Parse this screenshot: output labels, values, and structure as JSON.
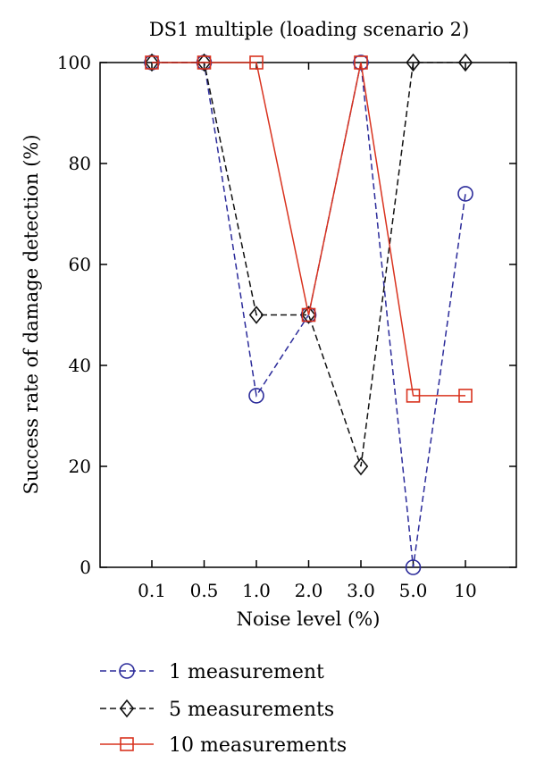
{
  "chart_data": {
    "type": "line",
    "title": "DS1 multiple (loading scenario 2)",
    "xlabel": "Noise level (%)",
    "ylabel": "Success rate of damage detection (%)",
    "categories": [
      "0.1",
      "0.5",
      "1.0",
      "2.0",
      "3.0",
      "5.0",
      "10"
    ],
    "ylim": [
      0,
      100
    ],
    "yticks": [
      "0",
      "20",
      "40",
      "60",
      "80",
      "100"
    ],
    "grid": false,
    "legend_position": "bottom",
    "series": [
      {
        "name": "1 measurement",
        "values": [
          100,
          100,
          34,
          50,
          100,
          0,
          74
        ],
        "color": "#2b2b9a",
        "marker": "circle",
        "dash": "dashed"
      },
      {
        "name": "5 measurements",
        "values": [
          100,
          100,
          50,
          50,
          20,
          100,
          100
        ],
        "color": "#111111",
        "marker": "diamond",
        "dash": "dashed"
      },
      {
        "name": "10 measurements",
        "values": [
          100,
          100,
          100,
          50,
          100,
          34,
          34
        ],
        "color": "#d9331f",
        "marker": "square",
        "dash": "solid"
      }
    ]
  }
}
